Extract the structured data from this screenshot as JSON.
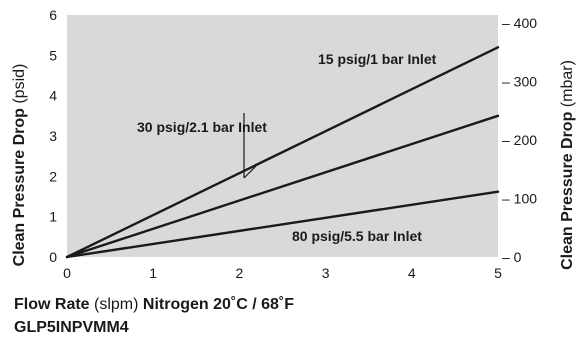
{
  "chart_data": {
    "type": "line",
    "x_axis": {
      "label_bold": "Flow Rate",
      "label_light": " (slpm) ",
      "label_tail": "Nitrogen 20˚C / 68˚F",
      "range": [
        0,
        5
      ],
      "ticks": [
        "0",
        "1",
        "2",
        "3",
        "4",
        "5"
      ]
    },
    "y_left": {
      "label_bold": "Clean Pressure Drop",
      "label_light": " (psid)",
      "range": [
        0,
        6
      ],
      "ticks": [
        "0",
        "1",
        "2",
        "3",
        "4",
        "5",
        "6"
      ]
    },
    "y_right": {
      "label_bold": "Clean Pressure Drop",
      "label_light": " (mbar)",
      "ticks": [
        {
          "label": "0",
          "psid": 0
        },
        {
          "label": "100",
          "psid": 1.4504
        },
        {
          "label": "200",
          "psid": 2.9008
        },
        {
          "label": "300",
          "psid": 4.3511
        },
        {
          "label": "400",
          "psid": 5.8015
        }
      ]
    },
    "model": "GLP5INPVMM4",
    "series": [
      {
        "name": "15 psig/1 bar Inlet",
        "x": [
          0,
          5
        ],
        "y": [
          0,
          5.2
        ]
      },
      {
        "name": "30 psig/2.1 bar Inlet",
        "x": [
          0,
          5
        ],
        "y": [
          0,
          3.5
        ]
      },
      {
        "name": "80 psig/5.5 bar Inlet",
        "x": [
          0,
          5
        ],
        "y": [
          0,
          1.62
        ]
      }
    ],
    "grid": false,
    "background": "#d9d9d9",
    "line_color": "#1a1a1a"
  }
}
